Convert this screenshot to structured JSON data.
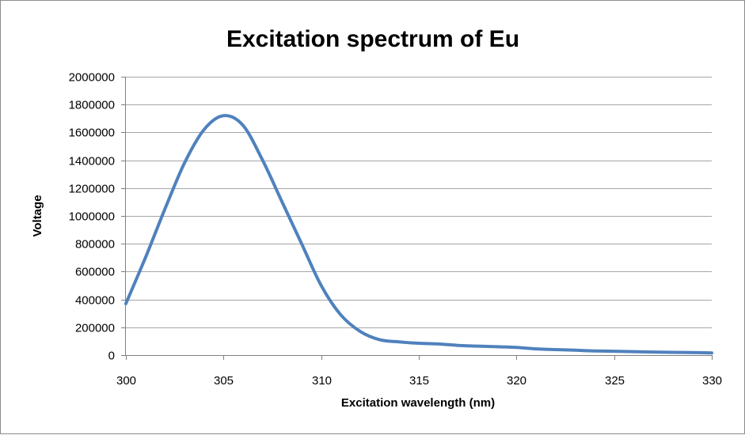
{
  "chart_data": {
    "type": "line",
    "title": "Excitation spectrum of Eu",
    "xlabel": "Excitation wavelength (nm)",
    "ylabel": "Voltage",
    "xlim": [
      300,
      330
    ],
    "ylim": [
      0,
      2000000
    ],
    "x_ticks": [
      300,
      305,
      310,
      315,
      320,
      325,
      330
    ],
    "y_ticks": [
      0,
      200000,
      400000,
      600000,
      800000,
      1000000,
      1200000,
      1400000,
      1600000,
      1800000,
      2000000
    ],
    "grid": true,
    "legend": "none",
    "series_color": "#4f81bd",
    "series": [
      {
        "x": [
          300,
          301,
          302,
          303,
          304,
          305,
          306,
          307,
          308,
          309,
          310,
          311,
          312,
          313,
          314,
          315,
          316,
          317,
          318,
          319,
          320,
          321,
          322,
          323,
          324,
          325,
          326,
          327,
          328,
          329,
          330
        ],
        "values": [
          370000,
          700000,
          1050000,
          1380000,
          1620000,
          1720000,
          1650000,
          1400000,
          1100000,
          800000,
          500000,
          290000,
          170000,
          110000,
          95000,
          85000,
          80000,
          70000,
          65000,
          60000,
          55000,
          45000,
          40000,
          35000,
          30000,
          28000,
          25000,
          22000,
          20000,
          18000,
          16000
        ]
      }
    ]
  }
}
